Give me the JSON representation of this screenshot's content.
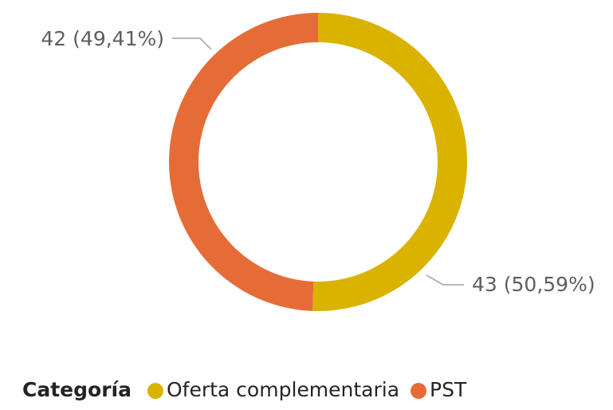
{
  "chart_data": {
    "type": "donut",
    "categories": [
      "Oferta complementaria",
      "PST"
    ],
    "values": [
      43,
      42
    ],
    "value_labels": [
      "43 (50,59%)",
      "42 (49,41%)"
    ],
    "colors": [
      "#D9B300",
      "#E66C37"
    ],
    "legend_title": "Categoría"
  }
}
